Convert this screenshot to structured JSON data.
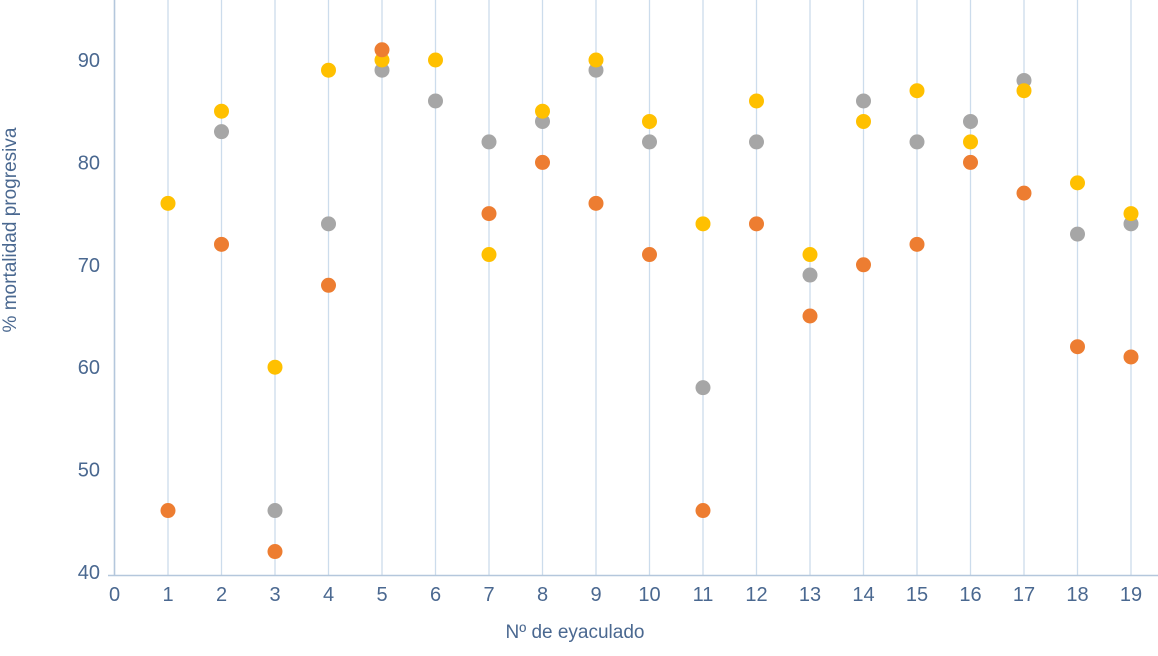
{
  "chart_data": {
    "type": "scatter",
    "title": "",
    "xlabel": "Nº de eyaculado",
    "ylabel": "% mortalidad progresiva",
    "x_ticks": [
      0,
      1,
      2,
      3,
      4,
      5,
      6,
      7,
      8,
      9,
      10,
      11,
      12,
      13,
      14,
      15,
      16,
      17,
      18,
      19
    ],
    "y_ticks": [
      40,
      50,
      60,
      70,
      80,
      90
    ],
    "xlim": [
      0,
      19
    ],
    "ylim": [
      40,
      96
    ],
    "grid": "vertical-only",
    "legend": "none",
    "style": {
      "background": "#ffffff",
      "grid_color": "#ccdcec",
      "axis_color": "#b4c7dc",
      "text_color": "#4a6890",
      "point_radius": 7.5,
      "tick_font_size": 20
    },
    "series": [
      {
        "name": "gray",
        "color": "#a6a6a6",
        "points": [
          [
            2,
            83
          ],
          [
            3,
            46
          ],
          [
            4,
            74
          ],
          [
            5,
            89
          ],
          [
            6,
            86
          ],
          [
            7,
            82
          ],
          [
            8,
            84
          ],
          [
            9,
            89
          ],
          [
            10,
            82
          ],
          [
            11,
            58
          ],
          [
            12,
            82
          ],
          [
            13,
            69
          ],
          [
            14,
            86
          ],
          [
            15,
            82
          ],
          [
            16,
            84
          ],
          [
            17,
            88
          ],
          [
            18,
            73
          ],
          [
            19,
            74
          ]
        ]
      },
      {
        "name": "yellow",
        "color": "#ffc000",
        "points": [
          [
            1,
            76
          ],
          [
            2,
            85
          ],
          [
            3,
            60
          ],
          [
            4,
            89
          ],
          [
            5,
            90
          ],
          [
            6,
            90
          ],
          [
            7,
            71
          ],
          [
            8,
            85
          ],
          [
            9,
            90
          ],
          [
            10,
            84
          ],
          [
            11,
            74
          ],
          [
            12,
            86
          ],
          [
            13,
            71
          ],
          [
            14,
            84
          ],
          [
            15,
            87
          ],
          [
            16,
            82
          ],
          [
            17,
            87
          ],
          [
            18,
            78
          ],
          [
            19,
            75
          ]
        ]
      },
      {
        "name": "orange",
        "color": "#ed7d31",
        "points": [
          [
            1,
            46
          ],
          [
            2,
            72
          ],
          [
            3,
            42
          ],
          [
            4,
            68
          ],
          [
            5,
            91
          ],
          [
            7,
            75
          ],
          [
            8,
            80
          ],
          [
            9,
            76
          ],
          [
            10,
            71
          ],
          [
            11,
            46
          ],
          [
            12,
            74
          ],
          [
            13,
            65
          ],
          [
            14,
            70
          ],
          [
            15,
            72
          ],
          [
            16,
            80
          ],
          [
            17,
            77
          ],
          [
            18,
            62
          ],
          [
            19,
            61
          ]
        ]
      }
    ]
  }
}
